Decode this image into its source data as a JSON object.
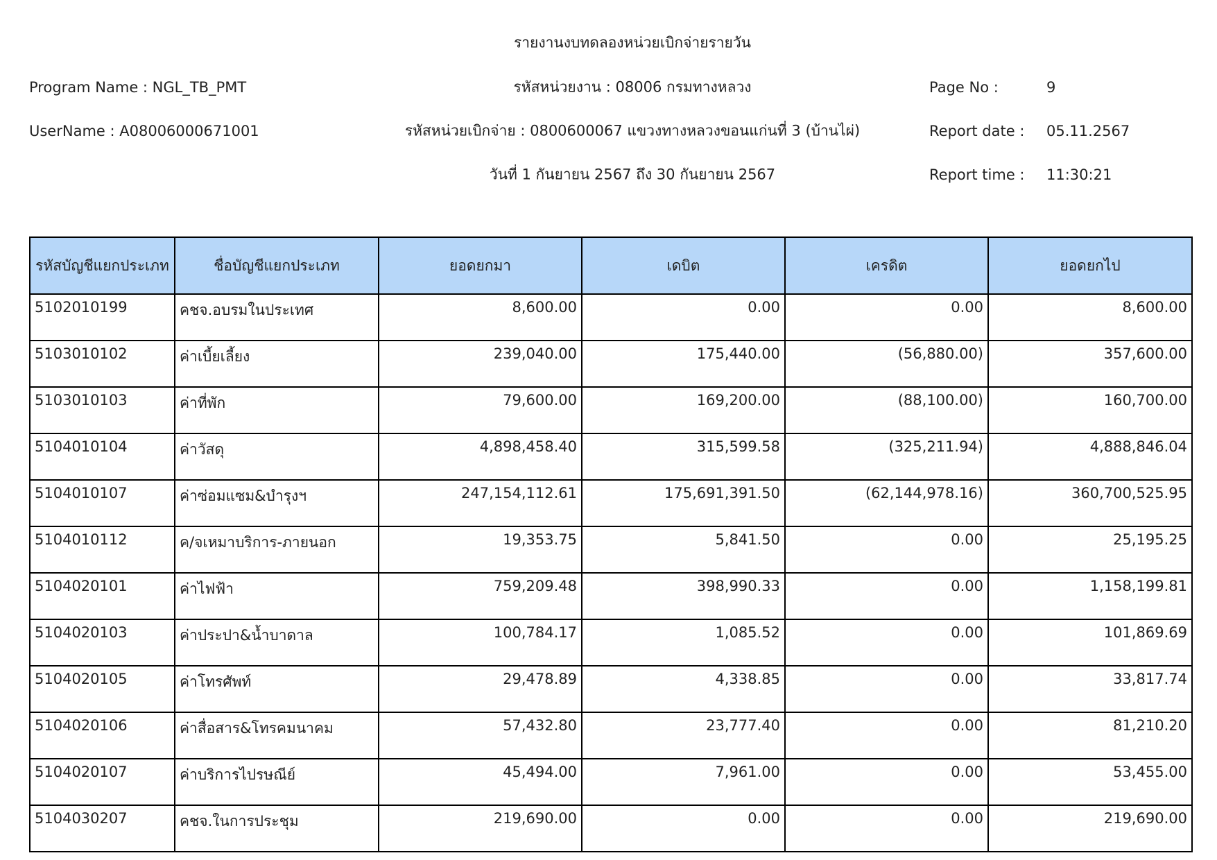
{
  "header": {
    "title": "รายงานงบทดลองหน่วยเบิกจ่ายรายวัน",
    "program_name": "Program Name : NGL_TB_PMT",
    "unit_code": "รหัสหน่วยงาน : 08006 กรมทางหลวง",
    "page_no_label": "Page No :",
    "page_no": "9",
    "username": "UserName : A08006000671001",
    "disburse_unit": "รหัสหน่วยเบิกจ่าย : 0800600067 แขวงทางหลวงขอนแก่นที่ 3 (บ้านไผ่)",
    "report_date_label": "Report date :",
    "report_date": "05.11.2567",
    "period": "วันที่ 1 กันยายน 2567 ถึง 30 กันยายน 2567",
    "report_time_label": "Report time :",
    "report_time": "11:30:21"
  },
  "table": {
    "columns": [
      "รหัสบัญชีแยกประเภท",
      "ชื่อบัญชีแยกประเภท",
      "ยอดยกมา",
      "เดบิต",
      "เครดิต",
      "ยอดยกไป"
    ],
    "rows": [
      [
        "5102010199",
        "คชจ.อบรมในประเทศ",
        "8,600.00",
        "0.00",
        "0.00",
        "8,600.00"
      ],
      [
        "5103010102",
        "ค่าเบี้ยเลี้ยง",
        "239,040.00",
        "175,440.00",
        "(56,880.00)",
        "357,600.00"
      ],
      [
        "5103010103",
        "ค่าที่พัก",
        "79,600.00",
        "169,200.00",
        "(88,100.00)",
        "160,700.00"
      ],
      [
        "5104010104",
        "ค่าวัสดุ",
        "4,898,458.40",
        "315,599.58",
        "(325,211.94)",
        "4,888,846.04"
      ],
      [
        "5104010107",
        "ค่าซ่อมแซม&บำรุงฯ",
        "247,154,112.61",
        "175,691,391.50",
        "(62,144,978.16)",
        "360,700,525.95"
      ],
      [
        "5104010112",
        "ค/จเหมาบริการ-ภายนอก",
        "19,353.75",
        "5,841.50",
        "0.00",
        "25,195.25"
      ],
      [
        "5104020101",
        "ค่าไฟฟ้า",
        "759,209.48",
        "398,990.33",
        "0.00",
        "1,158,199.81"
      ],
      [
        "5104020103",
        "ค่าประปา&น้ำบาดาล",
        "100,784.17",
        "1,085.52",
        "0.00",
        "101,869.69"
      ],
      [
        "5104020105",
        "ค่าโทรศัพท์",
        "29,478.89",
        "4,338.85",
        "0.00",
        "33,817.74"
      ],
      [
        "5104020106",
        "ค่าสื่อสาร&โทรคมนาคม",
        "57,432.80",
        "23,777.40",
        "0.00",
        "81,210.20"
      ],
      [
        "5104020107",
        "ค่าบริการไปรษณีย์",
        "45,494.00",
        "7,961.00",
        "0.00",
        "53,455.00"
      ],
      [
        "5104030207",
        "คชจ.ในการประชุม",
        "219,690.00",
        "0.00",
        "0.00",
        "219,690.00"
      ]
    ]
  }
}
